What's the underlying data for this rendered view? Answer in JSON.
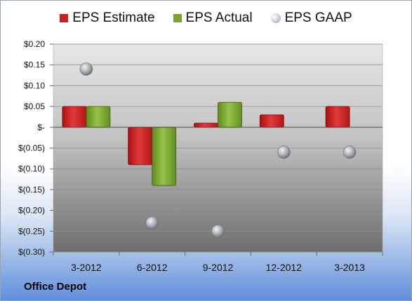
{
  "company": "Office Depot",
  "legend": {
    "estimate": "EPS Estimate",
    "actual": "EPS Actual",
    "gaap": "EPS GAAP"
  },
  "colors": {
    "estimate": "#cc1f1f",
    "actual": "#7aa32e",
    "gaap": "#a8adb3"
  },
  "chart_data": {
    "type": "bar",
    "categories": [
      "3-2012",
      "6-2012",
      "9-2012",
      "12-2012",
      "3-2013"
    ],
    "ylim": [
      -0.3,
      0.2
    ],
    "yticks": [
      0.2,
      0.15,
      0.1,
      0.05,
      0,
      -0.05,
      -0.1,
      -0.15,
      -0.2,
      -0.25,
      -0.3
    ],
    "ytick_labels": [
      "$0.20",
      "$0.15",
      "$0.10",
      "$0.05",
      "$-",
      "$(0.05)",
      "$(0.10)",
      "$(0.15)",
      "$(0.20)",
      "$(0.25)",
      "$(0.30)"
    ],
    "series": [
      {
        "name": "EPS Estimate",
        "type": "bar",
        "values": [
          0.05,
          -0.09,
          0.01,
          0.03,
          0.05
        ]
      },
      {
        "name": "EPS Actual",
        "type": "bar",
        "values": [
          0.05,
          -0.14,
          0.06,
          null,
          null
        ]
      },
      {
        "name": "EPS GAAP",
        "type": "scatter",
        "values": [
          0.14,
          -0.23,
          -0.25,
          -0.06,
          -0.06
        ]
      }
    ]
  }
}
